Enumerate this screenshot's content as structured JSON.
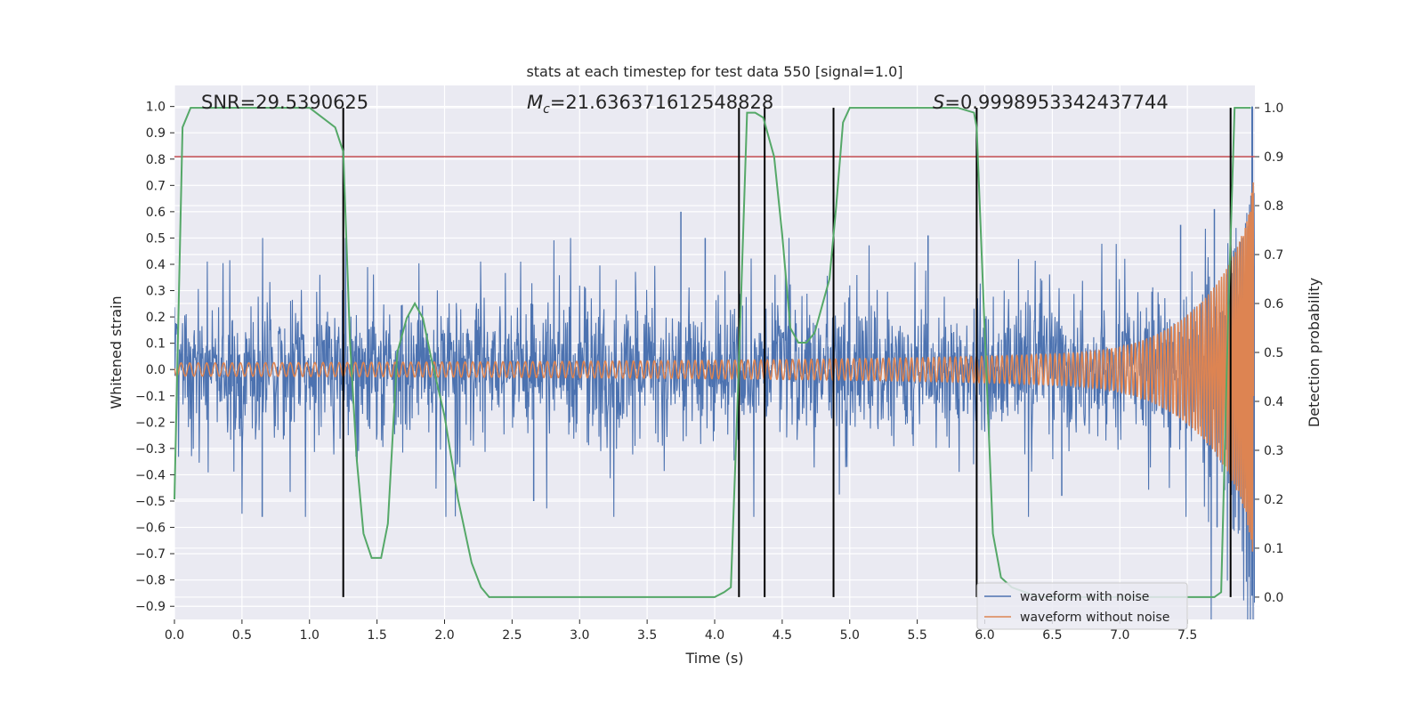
{
  "chart_data": {
    "type": "line",
    "title": "stats at each timestep for test data 550 [signal=1.0]",
    "xlabel": "Time (s)",
    "ylabel": "Whitened strain",
    "y2label": "Detection probability",
    "xlim": [
      0.0,
      8.0
    ],
    "ylim": [
      -0.95,
      1.08
    ],
    "y2lim": [
      -0.0456,
      1.0456
    ],
    "x_ticks": [
      0.0,
      0.5,
      1.0,
      1.5,
      2.0,
      2.5,
      3.0,
      3.5,
      4.0,
      4.5,
      5.0,
      5.5,
      6.0,
      6.5,
      7.0,
      7.5
    ],
    "x_tick_labels": [
      "0.0",
      "0.5",
      "1.0",
      "1.5",
      "2.0",
      "2.5",
      "3.0",
      "3.5",
      "4.0",
      "4.5",
      "5.0",
      "5.5",
      "6.0",
      "6.5",
      "7.0",
      "7.5"
    ],
    "y_ticks": [
      1.0,
      0.9,
      0.8,
      0.7,
      0.6,
      0.5,
      0.4,
      0.3,
      0.2,
      0.1,
      0.0,
      -0.1,
      -0.2,
      -0.3,
      -0.4,
      -0.5,
      -0.6,
      -0.7,
      -0.8,
      -0.9
    ],
    "y_tick_labels": [
      "1.0",
      "0.9",
      "0.8",
      "0.7",
      "0.6",
      "0.5",
      "0.4",
      "0.3",
      "0.2",
      "0.1",
      "0.0",
      "−0.1",
      "−0.2",
      "−0.3",
      "−0.4",
      "−0.5",
      "−0.6",
      "−0.7",
      "−0.8",
      "−0.9"
    ],
    "y2_ticks": [
      1.0,
      0.9,
      0.8,
      0.7,
      0.6,
      0.5,
      0.4,
      0.3,
      0.2,
      0.1,
      0.0
    ],
    "y2_tick_labels": [
      "1.0",
      "0.9",
      "0.8",
      "0.7",
      "0.6",
      "0.5",
      "0.4",
      "0.3",
      "0.2",
      "0.1",
      "0.0"
    ],
    "grid": true,
    "annotations": {
      "snr": "SNR=29.5390625",
      "mc_symbol": "M",
      "mc_subscript": "c",
      "mc_value": "=21.636371612548828",
      "s_symbol": "S",
      "s_value": "=0.9998953342437744"
    },
    "threshold_y2": 0.9,
    "event_lines_x": [
      1.25,
      4.18,
      4.37,
      4.88,
      5.94,
      7.82
    ],
    "series": [
      {
        "name": "waveform with noise",
        "color": "#4c72b0",
        "description": "whitened noisy strain, roughly within ±0.45 with occasional spikes (max ~0.6 near 3.75 s, min ~-0.56 near 0.65 s), growing to ±1.0 near 8.0 s"
      },
      {
        "name": "waveform without noise",
        "color": "#dd8452",
        "description": "chirp signal, amplitude ~0.005 at 0 s rising to ~0.9 at 8.0 s"
      },
      {
        "name": "detection probability",
        "color": "#55a868",
        "axis": "y2",
        "x": [
          0.0,
          0.06,
          0.12,
          0.2,
          0.4,
          0.6,
          0.8,
          1.0,
          1.19,
          1.25,
          1.3,
          1.35,
          1.4,
          1.46,
          1.53,
          1.58,
          1.65,
          1.72,
          1.78,
          1.84,
          1.9,
          2.0,
          2.1,
          2.2,
          2.27,
          2.33,
          2.5,
          3.0,
          3.5,
          4.0,
          4.07,
          4.12,
          4.18,
          4.24,
          4.3,
          4.36,
          4.44,
          4.5,
          4.56,
          4.62,
          4.68,
          4.74,
          4.8,
          4.85,
          4.9,
          4.95,
          5.0,
          5.2,
          5.5,
          5.8,
          5.92,
          5.94,
          6.0,
          6.06,
          6.12,
          6.2,
          6.4,
          6.8,
          7.2,
          7.6,
          7.7,
          7.75,
          7.8,
          7.85,
          7.9,
          7.97
        ],
        "y": [
          0.2,
          0.96,
          1.0,
          1.0,
          1.0,
          1.0,
          1.0,
          1.0,
          0.96,
          0.91,
          0.52,
          0.28,
          0.13,
          0.08,
          0.08,
          0.15,
          0.5,
          0.57,
          0.6,
          0.57,
          0.49,
          0.37,
          0.2,
          0.07,
          0.02,
          0.0,
          0.0,
          0.0,
          0.0,
          0.0,
          0.01,
          0.02,
          0.48,
          0.99,
          0.99,
          0.98,
          0.9,
          0.74,
          0.55,
          0.52,
          0.52,
          0.54,
          0.6,
          0.65,
          0.8,
          0.97,
          1.0,
          1.0,
          1.0,
          1.0,
          0.99,
          0.96,
          0.54,
          0.13,
          0.04,
          0.02,
          0.0,
          0.0,
          0.0,
          0.0,
          0.0,
          0.01,
          0.55,
          1.0,
          1.0,
          1.0
        ]
      }
    ],
    "legend": {
      "position": "lower-right",
      "entries": [
        {
          "label": "waveform with noise",
          "color": "#4c72b0"
        },
        {
          "label": "waveform without noise",
          "color": "#dd8452"
        }
      ]
    },
    "colors": {
      "axes_bg": "#eaeaf2",
      "grid": "#ffffff",
      "threshold": "#c44e52",
      "event_line": "#000000"
    }
  }
}
